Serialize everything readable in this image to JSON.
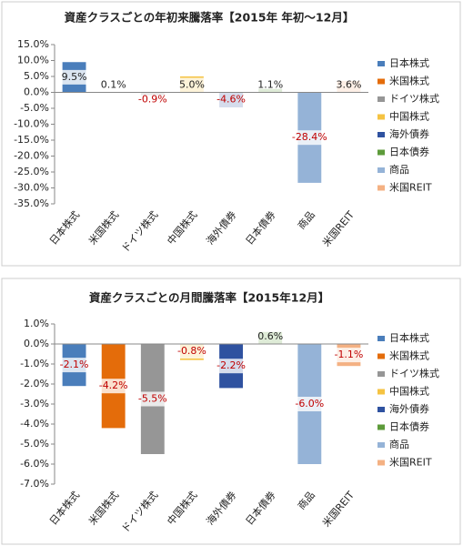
{
  "chart_data": [
    {
      "type": "bar",
      "title": "資産クラスごとの年初来騰落率【2015年 年初～12月】",
      "categories": [
        "日本株式",
        "米国株式",
        "ドイツ株式",
        "中国株式",
        "海外債券",
        "日本債券",
        "商品",
        "米国REIT"
      ],
      "values": [
        9.5,
        0.1,
        -0.9,
        5.0,
        -4.6,
        1.1,
        -28.4,
        3.6
      ],
      "value_labels": [
        "9.5%",
        "0.1%",
        "-0.9%",
        "5.0%",
        "-4.6%",
        "1.1%",
        "-28.4%",
        "3.6%"
      ],
      "colors": [
        "#4a7ebb",
        "#e46c0a",
        "#969696",
        "#f5c342",
        "#2f52a0",
        "#5d9b3a",
        "#95b3d7",
        "#f4b183"
      ],
      "ylim": [
        -35,
        15
      ],
      "yticks": [
        {
          "value": 15,
          "label": "15.0%"
        },
        {
          "value": 10,
          "label": "10.0%"
        },
        {
          "value": 5,
          "label": "5.0%"
        },
        {
          "value": 0,
          "label": "0.0%"
        },
        {
          "value": -5,
          "label": "-5.0%"
        },
        {
          "value": -10,
          "label": "-10.0%"
        },
        {
          "value": -15,
          "label": "-15.0%"
        },
        {
          "value": -20,
          "label": "-20.0%"
        },
        {
          "value": -25,
          "label": "-25.0%"
        },
        {
          "value": -30,
          "label": "-30.0%"
        },
        {
          "value": -35,
          "label": "-35.0%"
        }
      ],
      "grid": false
    },
    {
      "type": "bar",
      "title": "資産クラスごとの月間騰落率【2015年12月】",
      "categories": [
        "日本株式",
        "米国株式",
        "ドイツ株式",
        "中国株式",
        "海外債券",
        "日本債券",
        "商品",
        "米国REIT"
      ],
      "values": [
        -2.1,
        -4.2,
        -5.5,
        -0.8,
        -2.2,
        0.6,
        -6.0,
        -1.1
      ],
      "value_labels": [
        "-2.1%",
        "-4.2%",
        "-5.5%",
        "-0.8%",
        "-2.2%",
        "0.6%",
        "-6.0%",
        "-1.1%"
      ],
      "colors": [
        "#4a7ebb",
        "#e46c0a",
        "#969696",
        "#f5c342",
        "#2f52a0",
        "#5d9b3a",
        "#95b3d7",
        "#f4b183"
      ],
      "ylim": [
        -7,
        1
      ],
      "yticks": [
        {
          "value": 1,
          "label": "1.0%"
        },
        {
          "value": 0,
          "label": "0.0%"
        },
        {
          "value": -1,
          "label": "-1.0%"
        },
        {
          "value": -2,
          "label": "-2.0%"
        },
        {
          "value": -3,
          "label": "-3.0%"
        },
        {
          "value": -4,
          "label": "-4.0%"
        },
        {
          "value": -5,
          "label": "-5.0%"
        },
        {
          "value": -6,
          "label": "-6.0%"
        },
        {
          "value": -7,
          "label": "-7.0%"
        }
      ],
      "grid": false
    }
  ]
}
